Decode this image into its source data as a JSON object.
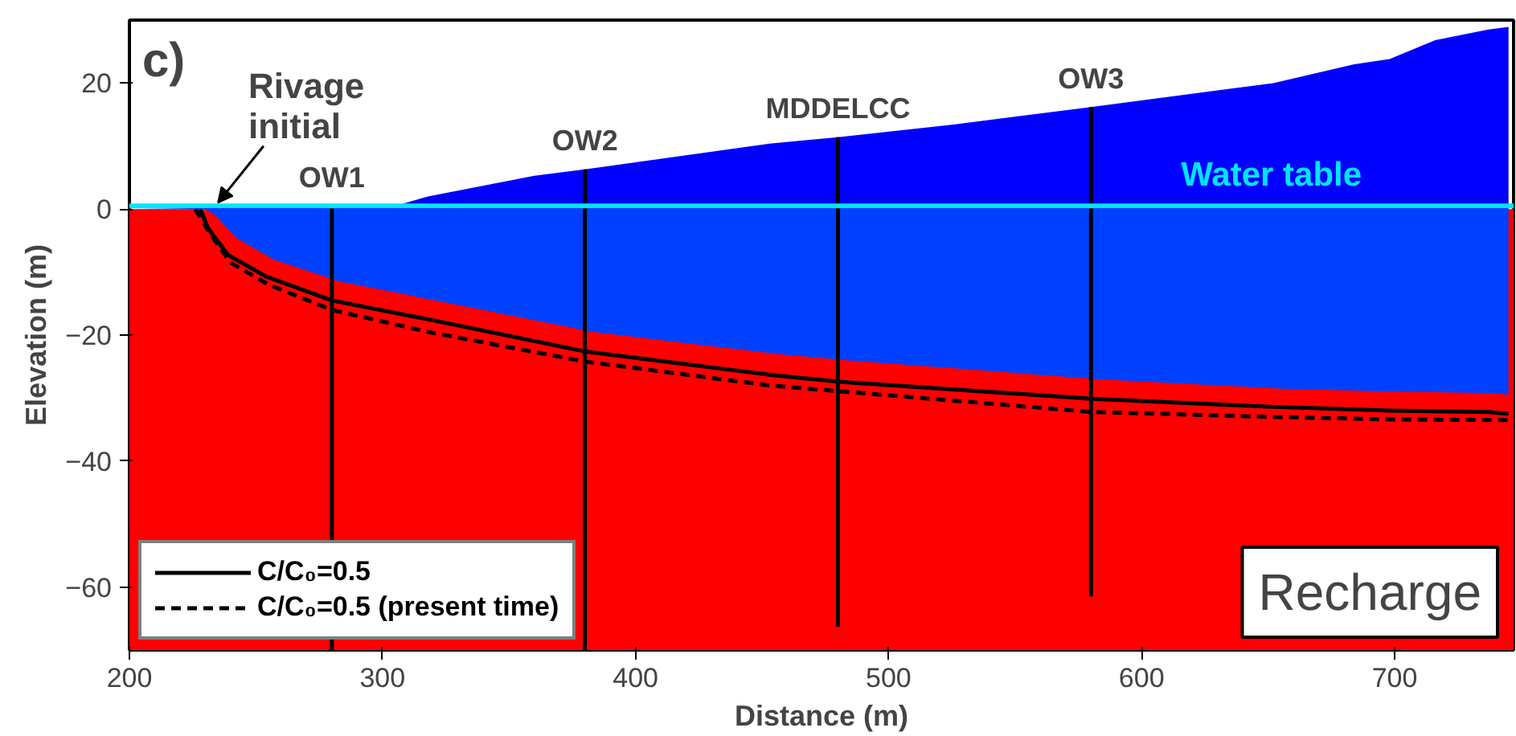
{
  "chart_data": {
    "type": "line",
    "xlabel": "Distance (m)",
    "ylabel": "Elevation (m)",
    "xlim": [
      200,
      747
    ],
    "ylim": [
      -70,
      30
    ],
    "xticks": [
      200,
      300,
      400,
      500,
      600,
      700
    ],
    "yticks": [
      -60,
      -40,
      -20,
      0,
      20
    ],
    "grid": false,
    "legend": "bottom left",
    "bands": [
      {
        "axis": "y",
        "from": -70,
        "to": 0,
        "color": "#ff0000"
      }
    ],
    "ref_lines": [
      {
        "axis": "y",
        "value": 0.5,
        "label": "Water table",
        "color": "#00e5ff"
      }
    ],
    "series": [
      {
        "type": "area",
        "color": "#0000ff",
        "x": [
          200,
          280,
          305,
          318,
          360,
          380,
          453,
          480,
          525,
          580,
          652,
          684,
          698,
          716,
          737,
          745
        ],
        "values": [
          0,
          0.5,
          0.5,
          2,
          5.3,
          6.3,
          10.4,
          11.4,
          13.4,
          16.2,
          20,
          23,
          23.8,
          26.8,
          28.5,
          28.9
        ]
      },
      {
        "name": "C/C₀=0.5",
        "color": "#000000",
        "line_style": "solid",
        "x": [
          228,
          231,
          239,
          254,
          280,
          318,
          380,
          453,
          480,
          580,
          652,
          698,
          737,
          745
        ],
        "values": [
          0,
          -3,
          -7.3,
          -10.7,
          -14.5,
          -17.5,
          -22.6,
          -26.3,
          -27.4,
          -30.1,
          -31.4,
          -32,
          -32.2,
          -32.5
        ]
      },
      {
        "name": "C/C₀=0.5 (present time)",
        "color": "#000000",
        "line_style": "dashed",
        "x": [
          226,
          232,
          240,
          255,
          280,
          318,
          380,
          453,
          480,
          580,
          652,
          700,
          745
        ],
        "values": [
          0,
          -4,
          -8.5,
          -12,
          -16,
          -19.5,
          -24.2,
          -28,
          -28.9,
          -32.2,
          -33,
          -33.4,
          -33.5
        ]
      },
      {
        "color": "#000000",
        "line_style": "solid",
        "x": [
          280,
          280
        ],
        "values": [
          0.5,
          -70
        ]
      },
      {
        "color": "#000000",
        "line_style": "solid",
        "x": [
          380,
          380
        ],
        "values": [
          6.3,
          -70
        ]
      },
      {
        "color": "#000000",
        "line_style": "solid",
        "x": [
          480,
          480
        ],
        "values": [
          11.4,
          -66.3
        ]
      },
      {
        "color": "#000000",
        "line_style": "solid",
        "x": [
          580,
          580
        ],
        "values": [
          16.2,
          -61.5
        ]
      },
      {
        "type": "area",
        "color": "#0040ff",
        "x": [
          200,
          230,
          234,
          242,
          257,
          283,
          321,
          383,
          456,
          483,
          583,
          655,
          701,
          740,
          745
        ],
        "values": [
          0,
          0,
          -1,
          -4.5,
          -8,
          -11.5,
          -14.5,
          -19.5,
          -23,
          -24,
          -27,
          -28.5,
          -29,
          -29.2,
          -29.5
        ]
      }
    ],
    "annotations": [
      "c)",
      {
        "text": "Rivage initial",
        "x": 235,
        "y": 0
      },
      {
        "text": "OW1",
        "x": 280,
        "y": 0.5
      },
      {
        "text": "OW2",
        "x": 380,
        "y": 6.3
      },
      {
        "text": "MDDELCC",
        "x": 480,
        "y": 11.4
      },
      {
        "text": "OW3",
        "x": 580,
        "y": 16.2
      },
      "Recharge"
    ]
  }
}
